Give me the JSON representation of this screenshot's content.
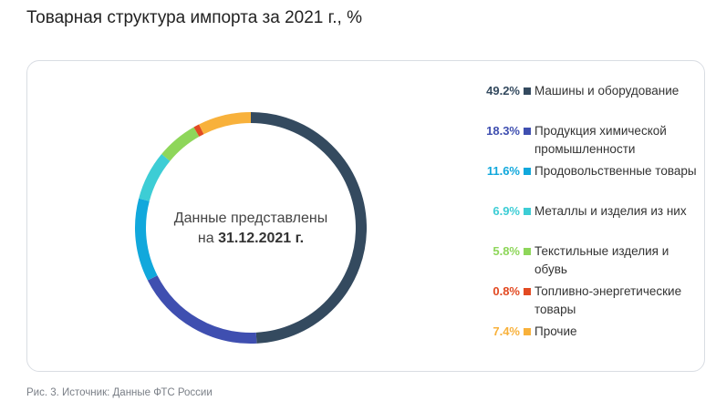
{
  "title": "Товарная структура импорта за 2021 г., %",
  "center": {
    "line1": "Данные представлены",
    "prefix": "на",
    "date": "31.12.2021 г."
  },
  "caption": "Рис. 3. Источник: Данные ФТС России",
  "chart_data": {
    "type": "pie",
    "variant": "donut",
    "categories": [
      "Машины и оборудование",
      "Продукция химической промышленности",
      "Продовольственные товары",
      "Металлы и изделия из них",
      "Текстильные изделия и обувь",
      "Топливно-энергетические товары",
      "Прочие"
    ],
    "values": [
      49.2,
      18.3,
      11.6,
      6.9,
      5.8,
      0.8,
      7.4
    ],
    "value_labels": [
      "49.2%",
      "18.3%",
      "11.6%",
      "6.9%",
      "5.8%",
      "0.8%",
      "7.4%"
    ],
    "colors": [
      "#344a5f",
      "#3f4fb0",
      "#11a8dc",
      "#3dcdd5",
      "#8ed65a",
      "#e24a22",
      "#f8b13b"
    ],
    "legend_position": "right"
  }
}
